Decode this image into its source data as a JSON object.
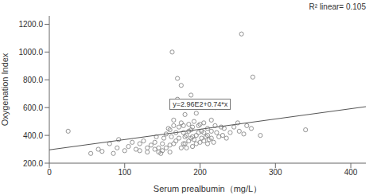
{
  "chart_data": {
    "type": "scatter",
    "title": "",
    "xlabel": "Serum prealbumin（mg/L）",
    "ylabel": "Oxygenation Index",
    "xlim": [
      0,
      420
    ],
    "ylim": [
      200,
      1260
    ],
    "xticks": [
      0,
      100,
      200,
      300,
      400
    ],
    "yticks": [
      {
        "value": 200,
        "label": "200.0"
      },
      {
        "value": 400,
        "label": "400.0"
      },
      {
        "value": 600,
        "label": "600.0"
      },
      {
        "value": 800,
        "label": "800.0"
      },
      {
        "value": 1000,
        "label": "1000.0"
      },
      {
        "value": 1200,
        "label": "1200.0"
      }
    ],
    "annotations": [
      "y=2.96E2+0.74*x",
      "R² linear= 0.105"
    ],
    "grid": false,
    "series": [
      {
        "type": "scatter",
        "marker": "circle",
        "color": "#888888",
        "x": [
          25,
          55,
          65,
          70,
          80,
          85,
          90,
          92,
          100,
          105,
          110,
          115,
          120,
          120,
          125,
          130,
          130,
          135,
          140,
          140,
          142,
          145,
          145,
          148,
          150,
          150,
          152,
          155,
          155,
          158,
          160,
          160,
          160,
          162,
          163,
          165,
          165,
          165,
          168,
          168,
          170,
          170,
          172,
          172,
          175,
          175,
          175,
          178,
          178,
          178,
          180,
          180,
          180,
          182,
          182,
          185,
          185,
          185,
          188,
          188,
          188,
          190,
          190,
          190,
          192,
          192,
          195,
          195,
          195,
          198,
          198,
          200,
          200,
          202,
          202,
          205,
          205,
          205,
          208,
          210,
          210,
          210,
          212,
          215,
          215,
          215,
          218,
          220,
          220,
          222,
          225,
          228,
          230,
          232,
          235,
          240,
          245,
          250,
          252,
          255,
          258,
          262,
          268,
          270,
          280,
          340
        ],
        "values": [
          430,
          270,
          300,
          285,
          340,
          270,
          310,
          370,
          290,
          320,
          350,
          300,
          290,
          340,
          360,
          280,
          310,
          330,
          300,
          350,
          390,
          280,
          310,
          270,
          340,
          290,
          380,
          310,
          410,
          450,
          280,
          440,
          330,
          390,
          1000,
          340,
          470,
          510,
          360,
          420,
          660,
          810,
          380,
          460,
          310,
          490,
          760,
          340,
          420,
          470,
          340,
          390,
          550,
          310,
          400,
          360,
          430,
          480,
          690,
          380,
          440,
          320,
          390,
          460,
          370,
          500,
          340,
          400,
          560,
          420,
          470,
          350,
          480,
          380,
          430,
          360,
          420,
          490,
          390,
          340,
          400,
          450,
          370,
          510,
          380,
          430,
          350,
          470,
          600,
          420,
          390,
          460,
          400,
          450,
          380,
          420,
          460,
          490,
          430,
          1130,
          410,
          470,
          450,
          820,
          400,
          440
        ]
      },
      {
        "type": "line",
        "line_style": "solid",
        "color": "#555555",
        "x": [
          0,
          420
        ],
        "values": [
          296,
          606.8
        ]
      }
    ]
  }
}
